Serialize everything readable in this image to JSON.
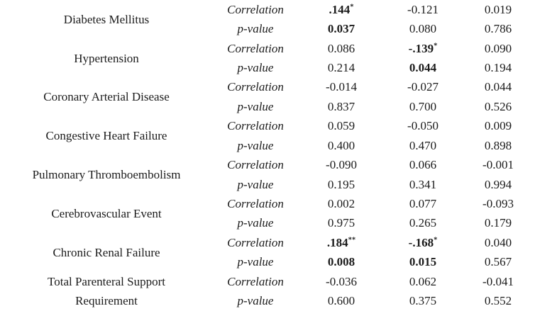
{
  "page": {
    "background_color": "#ffffff",
    "text_color": "#1b1b1b"
  },
  "table": {
    "row_labels": {
      "correlation": "Correlation",
      "p_value": "p-value"
    },
    "groups": [
      {
        "condition": "Diabetes Mellitus",
        "correlation": [
          {
            "v": ".144*",
            "b": true
          },
          {
            "v": "-0.121"
          },
          {
            "v": "0.019"
          }
        ],
        "p_value": [
          {
            "v": "0.037",
            "b": true
          },
          {
            "v": "0.080"
          },
          {
            "v": "0.786"
          }
        ]
      },
      {
        "condition": "Hypertension",
        "correlation": [
          {
            "v": "0.086"
          },
          {
            "v": "-.139*",
            "b": true
          },
          {
            "v": "0.090"
          }
        ],
        "p_value": [
          {
            "v": "0.214"
          },
          {
            "v": "0.044",
            "b": true
          },
          {
            "v": "0.194"
          }
        ]
      },
      {
        "condition": "Coronary Arterial Disease",
        "correlation": [
          {
            "v": "-0.014"
          },
          {
            "v": "-0.027"
          },
          {
            "v": "0.044"
          }
        ],
        "p_value": [
          {
            "v": "0.837"
          },
          {
            "v": "0.700"
          },
          {
            "v": "0.526"
          }
        ]
      },
      {
        "condition": "Congestive Heart Failure",
        "correlation": [
          {
            "v": "0.059"
          },
          {
            "v": "-0.050"
          },
          {
            "v": "0.009"
          }
        ],
        "p_value": [
          {
            "v": "0.400"
          },
          {
            "v": "0.470"
          },
          {
            "v": "0.898"
          }
        ]
      },
      {
        "condition": "Pulmonary Thromboembolism",
        "correlation": [
          {
            "v": "-0.090"
          },
          {
            "v": "0.066"
          },
          {
            "v": "-0.001"
          }
        ],
        "p_value": [
          {
            "v": "0.195"
          },
          {
            "v": "0.341"
          },
          {
            "v": "0.994"
          }
        ]
      },
      {
        "condition": "Cerebrovascular Event",
        "correlation": [
          {
            "v": "0.002"
          },
          {
            "v": "0.077"
          },
          {
            "v": "-0.093"
          }
        ],
        "p_value": [
          {
            "v": "0.975"
          },
          {
            "v": "0.265"
          },
          {
            "v": "0.179"
          }
        ]
      },
      {
        "condition": "Chronic Renal Failure",
        "correlation": [
          {
            "v": ".184**",
            "b": true
          },
          {
            "v": "-.168*",
            "b": true
          },
          {
            "v": "0.040"
          }
        ],
        "p_value": [
          {
            "v": "0.008",
            "b": true
          },
          {
            "v": "0.015",
            "b": true
          },
          {
            "v": "0.567"
          }
        ]
      },
      {
        "condition": "Total Parenteral Support\nRequirement",
        "correlation": [
          {
            "v": "-0.036"
          },
          {
            "v": "0.062"
          },
          {
            "v": "-0.041"
          }
        ],
        "p_value": [
          {
            "v": "0.600"
          },
          {
            "v": "0.375"
          },
          {
            "v": "0.552"
          }
        ]
      }
    ]
  }
}
